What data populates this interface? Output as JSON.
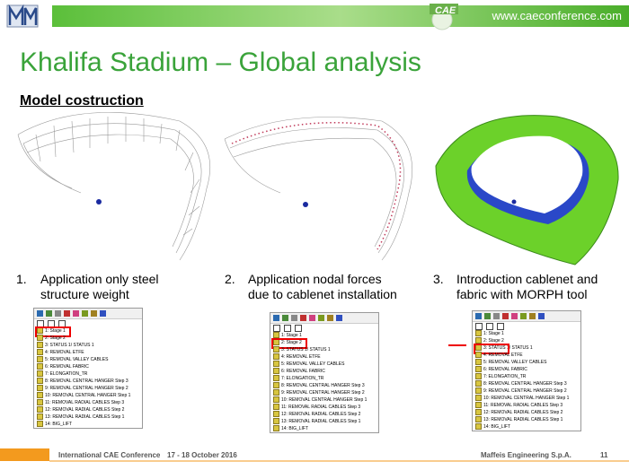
{
  "header": {
    "logo_text": "CAE",
    "url": "www.caeconference.com"
  },
  "title": "Khalifa Stadium – Global analysis",
  "subtitle": "Model costruction",
  "steps": [
    {
      "number": "1.",
      "lines": [
        "Application only steel",
        "structure weight"
      ],
      "tree": [
        "1: Stage 1",
        "2: Stage 2",
        "3: STATUS 1/ STATUS 1",
        "4: REMOVAL ETFE",
        "5: REMOVAL VALLEY CABLES",
        "6: REMOVAL FABRIC",
        "7: ELONGATION_TR",
        "8: REMOVAL CENTRAL HANGER Step 3",
        "9: REMOVAL CENTRAL HANGER Step 2",
        "10: REMOVAL CENTRAL HANGER Step 1",
        "11: REMOVAL RADIAL CABLES Step 3",
        "12: REMOVAL RADIAL CABLES Step 2",
        "13: REMOVAL RADIAL CABLES Step 1",
        "14: BIG_LIFT"
      ]
    },
    {
      "number": "2.",
      "lines": [
        "Application nodal forces",
        "due to cablenet installation"
      ],
      "tree": [
        "1: Stage 1",
        "2: Stage 2",
        "3: STATUS 1/ STATUS 1",
        "4: REMOVAL ETFE",
        "5: REMOVAL VALLEY CABLES",
        "6: REMOVAL FABRIC",
        "7: ELONGATION_TR",
        "8: REMOVAL CENTRAL HANGER Step 3",
        "9: REMOVAL CENTRAL HANGER Step 2",
        "10: REMOVAL CENTRAL HANGER Step 1",
        "11: REMOVAL RADIAL CABLES Step 3",
        "12: REMOVAL RADIAL CABLES Step 2",
        "13: REMOVAL RADIAL CABLES Step 1",
        "14: BIG_LIFT"
      ]
    },
    {
      "number": "3.",
      "lines": [
        "Introduction cablenet and",
        "fabric with MORPH tool"
      ],
      "tree": [
        "1: Stage 1",
        "2: Stage 2",
        "3: STATUS 1/ STATUS 1",
        "4: REMOVAL ETFE",
        "5: REMOVAL VALLEY CABLES",
        "6: REMOVAL FABRIC",
        "7: ELONGATION_TR",
        "8: REMOVAL CENTRAL HANGER Step 3",
        "9: REMOVAL CENTRAL HANGER Step 2",
        "10: REMOVAL CENTRAL HANGER Step 1",
        "11: REMOVAL RADIAL CABLES Step 3",
        "12: REMOVAL RADIAL CABLES Step 2",
        "13: REMOVAL RADIAL CABLES Step 1",
        "14: BIG_LIFT"
      ]
    }
  ],
  "footer": {
    "conference": "International CAE Conference",
    "dates": "17 - 18 October 2016",
    "company": "Maffeis Engineering S.p.A.",
    "page": 11
  }
}
